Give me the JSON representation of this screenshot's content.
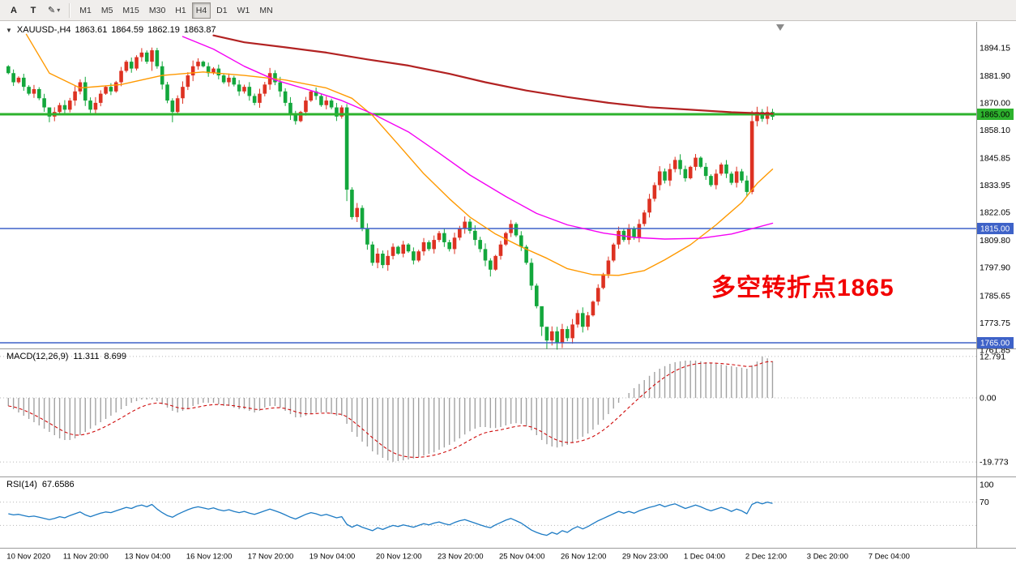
{
  "toolbar": {
    "tools": [
      {
        "name": "cursor-tool",
        "label": "A"
      },
      {
        "name": "text-tool",
        "label": "T"
      },
      {
        "name": "draw-tool",
        "label": "✎"
      }
    ],
    "timeframes": [
      "M1",
      "M5",
      "M15",
      "M30",
      "H1",
      "H4",
      "D1",
      "W1",
      "MN"
    ],
    "active_timeframe": "H4"
  },
  "symbol_header": {
    "collapse_icon": "▼",
    "symbol": "XAUUSD-,H4",
    "open": "1863.61",
    "high": "1864.59",
    "low": "1862.19",
    "close": "1863.87"
  },
  "annotation": {
    "text": "多空转折点1865",
    "color": "#f20000"
  },
  "indicators": {
    "macd": {
      "label": "MACD(12,26,9)",
      "value_main": "11.311",
      "value_signal": "8.699",
      "axis_labels": [
        "12.791",
        "0.00",
        "-19.773"
      ]
    },
    "rsi": {
      "label": "RSI(14)",
      "value": "67.6586",
      "axis_labels": [
        "100",
        "70"
      ],
      "levels": [
        70,
        30
      ]
    }
  },
  "chart_data": {
    "type": "candlestick",
    "symbol": "XAUUSD",
    "timeframe": "H4",
    "subpanels": [
      "MACD(12,26,9)",
      "RSI(14)"
    ],
    "bull_color": "#dd3222",
    "bear_color": "#13a73c",
    "price_axis_labels": [
      1894.15,
      1881.9,
      1870.0,
      1858.1,
      1845.85,
      1833.95,
      1822.05,
      1809.8,
      1797.9,
      1785.65,
      1773.75,
      1761.85
    ],
    "hlines": [
      {
        "price": 1865.0,
        "label": "1865.00",
        "color": "#2db22d",
        "badge_text_color": "#000000",
        "width": 3
      },
      {
        "price": 1815.0,
        "label": "1815.00",
        "color": "#3e62c8",
        "badge_text_color": "#ffffff",
        "width": 1.6
      },
      {
        "price": 1765.0,
        "label": "1765.00",
        "color": "#3e62c8",
        "badge_text_color": "#ffffff",
        "width": 1.6
      }
    ],
    "time_ticks": [
      {
        "label": "10 Nov 2020",
        "i": 0
      },
      {
        "label": "11 Nov 20:00",
        "i": 11
      },
      {
        "label": "13 Nov 04:00",
        "i": 23
      },
      {
        "label": "16 Nov 12:00",
        "i": 35
      },
      {
        "label": "17 Nov 20:00",
        "i": 47
      },
      {
        "label": "19 Nov 04:00",
        "i": 59
      },
      {
        "label": "20 Nov 12:00",
        "i": 72
      },
      {
        "label": "23 Nov 20:00",
        "i": 84
      },
      {
        "label": "25 Nov 04:00",
        "i": 96
      },
      {
        "label": "26 Nov 12:00",
        "i": 108
      },
      {
        "label": "29 Nov 23:00",
        "i": 120
      },
      {
        "label": "1 Dec 04:00",
        "i": 132
      },
      {
        "label": "2 Dec 12:00",
        "i": 144
      },
      {
        "label": "3 Dec 20:00",
        "i": 156
      },
      {
        "label": "7 Dec 04:00",
        "i": 168
      }
    ],
    "first_open": 1886,
    "closes": [
      1883,
      1879,
      1881,
      1877,
      1874,
      1876,
      1872,
      1868,
      1864,
      1866,
      1869,
      1867,
      1871,
      1875,
      1879,
      1871,
      1867,
      1870,
      1874,
      1877,
      1875,
      1879,
      1884,
      1888,
      1885,
      1890,
      1892,
      1888,
      1893,
      1886,
      1878,
      1871,
      1866,
      1872,
      1877,
      1882,
      1886,
      1888,
      1886,
      1883,
      1885,
      1882,
      1879,
      1881,
      1878,
      1875,
      1877,
      1873,
      1870,
      1874,
      1878,
      1883,
      1879,
      1875,
      1870,
      1865,
      1862,
      1866,
      1871,
      1875,
      1873,
      1869,
      1871,
      1868,
      1864,
      1868,
      1832,
      1820,
      1824,
      1815,
      1808,
      1800,
      1804,
      1799,
      1803,
      1807,
      1804,
      1808,
      1805,
      1801,
      1805,
      1809,
      1806,
      1810,
      1813,
      1809,
      1806,
      1811,
      1815,
      1818,
      1814,
      1810,
      1806,
      1801,
      1797,
      1803,
      1808,
      1813,
      1817,
      1812,
      1807,
      1800,
      1790,
      1781,
      1772,
      1766,
      1770,
      1765,
      1771,
      1767,
      1773,
      1778,
      1772,
      1777,
      1783,
      1789,
      1795,
      1801,
      1808,
      1814,
      1810,
      1815,
      1811,
      1817,
      1822,
      1828,
      1834,
      1840,
      1836,
      1841,
      1845,
      1841,
      1837,
      1842,
      1846,
      1842,
      1838,
      1834,
      1839,
      1843,
      1839,
      1835,
      1840,
      1836,
      1831,
      1862,
      1866,
      1863,
      1866,
      1863.9
    ],
    "default_wick": 1.2,
    "wick_overrides": {
      "8": [
        1867.5,
        1861.5
      ],
      "28": [
        1894.2,
        1884.0
      ],
      "32": [
        1872.0,
        1861.5
      ],
      "66": [
        1869.5,
        1827.0
      ],
      "94": [
        1802.0,
        1794.0
      ],
      "104": [
        1773.0,
        1768.0
      ],
      "105": [
        1770.0,
        1762.3
      ],
      "107": [
        1772.0,
        1762.0
      ],
      "145": [
        1866.5,
        1830.0
      ]
    },
    "overlays": [
      {
        "name": "ma-fast-line",
        "color": "#ff9900",
        "width": 1.4,
        "points": [
          [
            3.5,
            1900
          ],
          [
            8,
            1883
          ],
          [
            14,
            1876.5
          ],
          [
            22,
            1878
          ],
          [
            30,
            1882
          ],
          [
            38,
            1883.5
          ],
          [
            46,
            1882
          ],
          [
            54,
            1880
          ],
          [
            62,
            1876.5
          ],
          [
            67,
            1872
          ],
          [
            71,
            1864.5
          ],
          [
            76,
            1851.8
          ],
          [
            81,
            1839
          ],
          [
            86,
            1828
          ],
          [
            90,
            1820
          ],
          [
            95,
            1812.6
          ],
          [
            100,
            1807
          ],
          [
            105,
            1802
          ],
          [
            109,
            1797.4
          ],
          [
            114,
            1794.8
          ],
          [
            119,
            1794.5
          ],
          [
            124,
            1796.6
          ],
          [
            128,
            1801.3
          ],
          [
            133,
            1807.9
          ],
          [
            138,
            1816.6
          ],
          [
            143,
            1826.4
          ],
          [
            146,
            1834.7
          ],
          [
            149,
            1841
          ]
        ]
      },
      {
        "name": "ma-mid-line",
        "color": "#f400f4",
        "width": 1.4,
        "points": [
          [
            34,
            1899
          ],
          [
            40,
            1893.5
          ],
          [
            46,
            1886
          ],
          [
            52,
            1880
          ],
          [
            59,
            1875.4
          ],
          [
            65,
            1871
          ],
          [
            71,
            1865.2
          ],
          [
            78,
            1857.3
          ],
          [
            84,
            1848
          ],
          [
            90,
            1838.4
          ],
          [
            97,
            1829
          ],
          [
            103,
            1821.6
          ],
          [
            109,
            1816.6
          ],
          [
            116,
            1813
          ],
          [
            122,
            1811.1
          ],
          [
            128,
            1810.4
          ],
          [
            135,
            1810.7
          ],
          [
            141,
            1812.6
          ],
          [
            146,
            1815.5
          ],
          [
            149,
            1817.3
          ]
        ]
      },
      {
        "name": "ma-slow-line",
        "color": "#b22222",
        "width": 2.2,
        "points": [
          [
            40,
            1899.5
          ],
          [
            46,
            1896.5
          ],
          [
            54,
            1894.3
          ],
          [
            62,
            1892
          ],
          [
            70,
            1889
          ],
          [
            78,
            1886.3
          ],
          [
            86,
            1882.7
          ],
          [
            93,
            1879
          ],
          [
            101,
            1875.4
          ],
          [
            109,
            1872.5
          ],
          [
            117,
            1870
          ],
          [
            125,
            1868.1
          ],
          [
            133,
            1867
          ],
          [
            141,
            1865.9
          ],
          [
            149,
            1865.2
          ]
        ]
      }
    ],
    "macd_hist": [
      -2.5,
      -3.5,
      -4.5,
      -5.5,
      -6.5,
      -7.5,
      -8.5,
      -9.5,
      -10.5,
      -11.5,
      -12.5,
      -13,
      -13,
      -12.5,
      -11.5,
      -10.5,
      -9.5,
      -8.5,
      -7.5,
      -6.5,
      -5.5,
      -4.5,
      -3.5,
      -2.5,
      -1.5,
      -1,
      -0.5,
      -0.5,
      -0.5,
      -1,
      -2,
      -3,
      -4,
      -4.5,
      -4,
      -3.5,
      -2.5,
      -2,
      -1.5,
      -1.5,
      -1.5,
      -2,
      -2.5,
      -2.5,
      -3,
      -3.5,
      -3.5,
      -4,
      -4.5,
      -4,
      -3,
      -2.5,
      -2.5,
      -3,
      -4,
      -5,
      -6,
      -6,
      -5.5,
      -5,
      -4.5,
      -4.5,
      -4.5,
      -5,
      -5.5,
      -5.5,
      -8,
      -10.5,
      -12,
      -13.5,
      -15,
      -16.5,
      -17.5,
      -18.5,
      -19.3,
      -19.7,
      -19.5,
      -19.3,
      -19,
      -18.7,
      -18.3,
      -17.8,
      -17.3,
      -16.8,
      -16,
      -15.3,
      -14.5,
      -13.5,
      -12.5,
      -11.3,
      -10.3,
      -9.5,
      -9,
      -9,
      -9.3,
      -9.3,
      -9,
      -8.5,
      -8,
      -7.8,
      -8,
      -8.8,
      -10,
      -11.5,
      -13,
      -14.3,
      -15,
      -15.3,
      -15,
      -14.5,
      -13.8,
      -12.8,
      -12,
      -11,
      -9.8,
      -8.3,
      -6.8,
      -5,
      -3.3,
      -1.5,
      0,
      1.5,
      3,
      4.3,
      5.5,
      6.8,
      8,
      9,
      9.8,
      10.5,
      11,
      11.3,
      11.5,
      11.5,
      11.5,
      11.3,
      11,
      10.8,
      10.5,
      10.3,
      10,
      9.8,
      9.5,
      9.3,
      9,
      10,
      11.2,
      12.79,
      12.2,
      11.31
    ],
    "rsi": [
      50,
      48,
      49,
      47,
      45,
      46,
      44,
      42,
      40,
      42,
      45,
      43,
      47,
      50,
      53,
      48,
      45,
      48,
      51,
      53,
      52,
      55,
      58,
      61,
      59,
      63,
      65,
      62,
      66,
      58,
      52,
      47,
      44,
      49,
      53,
      57,
      60,
      62,
      60,
      58,
      60,
      57,
      55,
      57,
      54,
      52,
      54,
      51,
      49,
      52,
      55,
      58,
      55,
      52,
      48,
      44,
      41,
      45,
      49,
      52,
      50,
      47,
      49,
      46,
      43,
      45,
      32,
      27,
      31,
      27,
      24,
      21,
      26,
      23,
      27,
      30,
      28,
      31,
      29,
      27,
      30,
      33,
      31,
      34,
      36,
      33,
      31,
      35,
      38,
      40,
      37,
      34,
      31,
      28,
      26,
      31,
      35,
      39,
      42,
      38,
      34,
      28,
      22,
      18,
      15,
      13,
      18,
      15,
      21,
      18,
      24,
      28,
      24,
      28,
      33,
      38,
      42,
      46,
      50,
      54,
      51,
      54,
      51,
      55,
      58,
      61,
      63,
      66,
      62,
      65,
      67,
      63,
      59,
      62,
      65,
      62,
      58,
      55,
      58,
      61,
      58,
      54,
      58,
      55,
      50,
      66,
      70,
      67,
      70,
      67.7
    ]
  }
}
